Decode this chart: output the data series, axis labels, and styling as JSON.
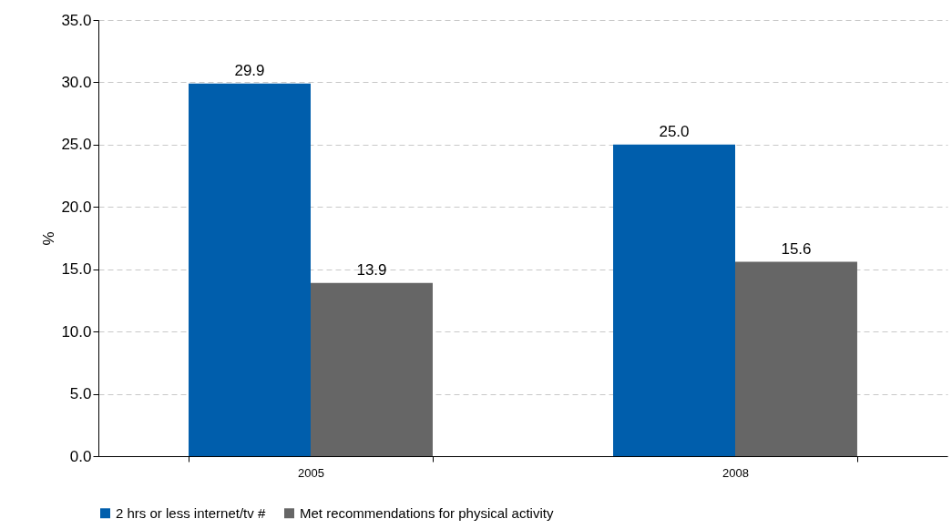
{
  "chart_data": {
    "type": "bar",
    "ylabel": "%",
    "categories": [
      "2005",
      "2008"
    ],
    "series": [
      {
        "name": "2 hrs or less internet/tv #",
        "color": "#005eac",
        "values": [
          29.9,
          25.0
        ],
        "value_labels": [
          "29.9",
          "25.0"
        ]
      },
      {
        "name": "Met recommendations for physical activity",
        "color": "#666666",
        "values": [
          13.9,
          15.6
        ],
        "value_labels": [
          "13.9",
          "15.6"
        ]
      }
    ],
    "ylim": [
      0,
      35
    ],
    "yticks": [
      {
        "value": 0,
        "label": "0.0"
      },
      {
        "value": 5,
        "label": "5.0"
      },
      {
        "value": 10,
        "label": "10.0"
      },
      {
        "value": 15,
        "label": "15.0"
      },
      {
        "value": 20,
        "label": "20.0"
      },
      {
        "value": 25,
        "label": "25.0"
      },
      {
        "value": 30,
        "label": "30.0"
      },
      {
        "value": 35,
        "label": "35.0"
      }
    ],
    "grid": "y",
    "legend": "bottom"
  }
}
